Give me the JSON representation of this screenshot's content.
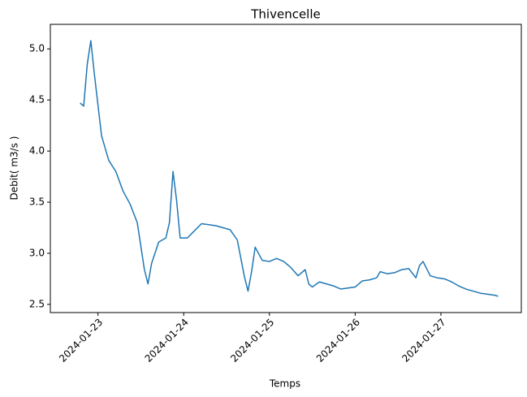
{
  "chart_data": {
    "type": "line",
    "title": "Thivencelle",
    "x_label": "Temps",
    "y_label": "Debit( m3/s )",
    "x": [
      "2024-01-22 19:00",
      "2024-01-22 20:00",
      "2024-01-22 21:00",
      "2024-01-22 22:00",
      "2024-01-22 23:00",
      "2024-01-23 01:00",
      "2024-01-23 03:00",
      "2024-01-23 05:00",
      "2024-01-23 07:00",
      "2024-01-23 09:00",
      "2024-01-23 11:00",
      "2024-01-23 13:00",
      "2024-01-23 14:00",
      "2024-01-23 15:00",
      "2024-01-23 17:00",
      "2024-01-23 19:00",
      "2024-01-23 20:00",
      "2024-01-23 21:00",
      "2024-01-23 22:00",
      "2024-01-23 23:00",
      "2024-01-24 01:00",
      "2024-01-24 03:00",
      "2024-01-24 05:00",
      "2024-01-24 07:00",
      "2024-01-24 09:00",
      "2024-01-24 11:00",
      "2024-01-24 13:00",
      "2024-01-24 15:00",
      "2024-01-24 17:00",
      "2024-01-24 18:00",
      "2024-01-24 19:00",
      "2024-01-24 20:00",
      "2024-01-24 22:00",
      "2024-01-25 00:00",
      "2024-01-25 02:00",
      "2024-01-25 04:00",
      "2024-01-25 06:00",
      "2024-01-25 08:00",
      "2024-01-25 10:00",
      "2024-01-25 11:00",
      "2024-01-25 12:00",
      "2024-01-25 14:00",
      "2024-01-25 16:00",
      "2024-01-25 18:00",
      "2024-01-25 20:00",
      "2024-01-25 22:00",
      "2024-01-26 00:00",
      "2024-01-26 02:00",
      "2024-01-26 04:00",
      "2024-01-26 06:00",
      "2024-01-26 07:00",
      "2024-01-26 09:00",
      "2024-01-26 11:00",
      "2024-01-26 13:00",
      "2024-01-26 15:00",
      "2024-01-26 17:00",
      "2024-01-26 18:00",
      "2024-01-26 19:00",
      "2024-01-26 21:00",
      "2024-01-26 23:00",
      "2024-01-27 01:00",
      "2024-01-27 03:00",
      "2024-01-27 05:00",
      "2024-01-27 07:00",
      "2024-01-27 09:00",
      "2024-01-27 11:00",
      "2024-01-27 13:00",
      "2024-01-27 15:00",
      "2024-01-27 16:00"
    ],
    "series": [
      {
        "color": "#1f77b4",
        "values": [
          4.47,
          4.44,
          4.85,
          5.08,
          4.75,
          4.15,
          3.91,
          3.8,
          3.61,
          3.48,
          3.3,
          2.84,
          2.7,
          2.9,
          3.11,
          3.15,
          3.3,
          3.8,
          3.52,
          3.15,
          3.15,
          3.22,
          3.29,
          3.28,
          3.27,
          3.25,
          3.23,
          3.13,
          2.77,
          2.63,
          2.82,
          3.06,
          2.93,
          2.92,
          2.95,
          2.92,
          2.86,
          2.78,
          2.84,
          2.7,
          2.67,
          2.72,
          2.7,
          2.68,
          2.65,
          2.66,
          2.67,
          2.73,
          2.74,
          2.76,
          2.82,
          2.8,
          2.81,
          2.84,
          2.85,
          2.76,
          2.88,
          2.92,
          2.78,
          2.76,
          2.75,
          2.72,
          2.68,
          2.65,
          2.63,
          2.61,
          2.6,
          2.59,
          2.58
        ]
      }
    ],
    "xlim": [
      "2024-01-22 10:40",
      "2024-01-27 22:30"
    ],
    "xticks": [
      "2024-01-23",
      "2024-01-24",
      "2024-01-25",
      "2024-01-26",
      "2024-01-27"
    ],
    "ylim": [
      2.42,
      5.24
    ],
    "yticks": [
      2.5,
      {
        "value": 3,
        "label": "3.0"
      },
      3.5,
      {
        "value": 4,
        "label": "4.0"
      },
      4.5,
      {
        "value": 5,
        "label": "5.0"
      }
    ]
  }
}
